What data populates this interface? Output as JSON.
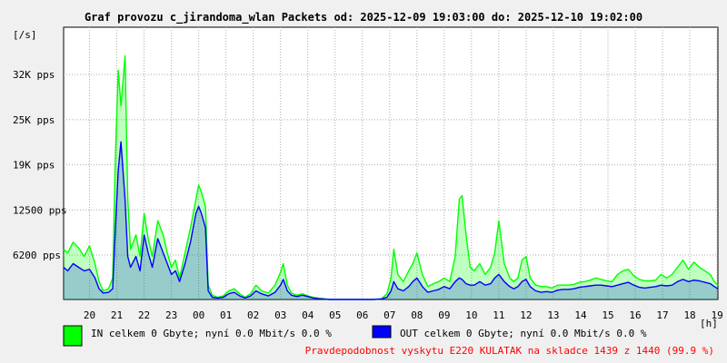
{
  "chart_data": {
    "type": "line",
    "title": "Graf provozu c_jirandoma_wlan Packets od: 2025-12-09 19:03:00 do: 2025-12-10 19:02:00",
    "ylabel": "[/s]",
    "xlabel": "[h]",
    "ylim": [
      0,
      38000
    ],
    "y_ticks": [
      {
        "label": "6200 pps",
        "value": 6200
      },
      {
        "label": "12500 pps",
        "value": 12500
      },
      {
        "label": "19K pps",
        "value": 18800
      },
      {
        "label": "25K pps",
        "value": 25100
      },
      {
        "label": "32K pps",
        "value": 31400
      }
    ],
    "x_ticks": [
      "20",
      "21",
      "22",
      "23",
      "00",
      "01",
      "02",
      "03",
      "04",
      "05",
      "06",
      "07",
      "08",
      "09",
      "10",
      "11",
      "12",
      "13",
      "14",
      "15",
      "16",
      "17",
      "18",
      "19"
    ],
    "x_range_hours": [
      19.05,
      43.03
    ],
    "grid": true,
    "series": [
      {
        "color": "#00ff00",
        "points": [
          [
            19.05,
            7000
          ],
          [
            19.2,
            6500
          ],
          [
            19.4,
            8000
          ],
          [
            19.6,
            7200
          ],
          [
            19.8,
            6000
          ],
          [
            20.0,
            7500
          ],
          [
            20.2,
            5000
          ],
          [
            20.35,
            2500
          ],
          [
            20.5,
            1200
          ],
          [
            20.7,
            1500
          ],
          [
            20.85,
            3000
          ],
          [
            20.95,
            20000
          ],
          [
            21.05,
            32000
          ],
          [
            21.15,
            27000
          ],
          [
            21.3,
            34000
          ],
          [
            21.4,
            14000
          ],
          [
            21.5,
            7000
          ],
          [
            21.7,
            9000
          ],
          [
            21.85,
            6000
          ],
          [
            22.0,
            12000
          ],
          [
            22.15,
            8500
          ],
          [
            22.3,
            6000
          ],
          [
            22.5,
            11000
          ],
          [
            22.7,
            9000
          ],
          [
            22.85,
            6500
          ],
          [
            23.0,
            4500
          ],
          [
            23.15,
            5500
          ],
          [
            23.3,
            3000
          ],
          [
            23.5,
            6500
          ],
          [
            23.7,
            10000
          ],
          [
            23.9,
            14000
          ],
          [
            24.0,
            16000
          ],
          [
            24.1,
            15000
          ],
          [
            24.25,
            13000
          ],
          [
            24.35,
            2000
          ],
          [
            24.5,
            600
          ],
          [
            24.7,
            300
          ],
          [
            24.9,
            500
          ],
          [
            25.1,
            1200
          ],
          [
            25.3,
            1500
          ],
          [
            25.5,
            800
          ],
          [
            25.7,
            300
          ],
          [
            25.9,
            800
          ],
          [
            26.1,
            2000
          ],
          [
            26.3,
            1200
          ],
          [
            26.55,
            900
          ],
          [
            26.8,
            2000
          ],
          [
            27.0,
            3800
          ],
          [
            27.1,
            5000
          ],
          [
            27.25,
            2000
          ],
          [
            27.4,
            900
          ],
          [
            27.6,
            600
          ],
          [
            27.8,
            800
          ],
          [
            28.0,
            500
          ],
          [
            28.2,
            300
          ],
          [
            28.4,
            200
          ],
          [
            28.6,
            100
          ],
          [
            28.8,
            0
          ],
          [
            29.2,
            0
          ],
          [
            29.6,
            0
          ],
          [
            30.0,
            0
          ],
          [
            30.4,
            0
          ],
          [
            30.7,
            100
          ],
          [
            30.9,
            800
          ],
          [
            31.05,
            3000
          ],
          [
            31.15,
            7000
          ],
          [
            31.3,
            3500
          ],
          [
            31.5,
            2500
          ],
          [
            31.7,
            4000
          ],
          [
            31.85,
            5000
          ],
          [
            32.0,
            6500
          ],
          [
            32.2,
            3500
          ],
          [
            32.4,
            1800
          ],
          [
            32.6,
            2200
          ],
          [
            32.8,
            2500
          ],
          [
            33.0,
            3000
          ],
          [
            33.2,
            2500
          ],
          [
            33.4,
            6000
          ],
          [
            33.55,
            14000
          ],
          [
            33.65,
            14500
          ],
          [
            33.8,
            9000
          ],
          [
            33.95,
            4500
          ],
          [
            34.1,
            4000
          ],
          [
            34.3,
            5000
          ],
          [
            34.5,
            3500
          ],
          [
            34.7,
            4500
          ],
          [
            34.85,
            6500
          ],
          [
            35.0,
            11000
          ],
          [
            35.2,
            5000
          ],
          [
            35.4,
            3000
          ],
          [
            35.55,
            2500
          ],
          [
            35.7,
            3000
          ],
          [
            35.85,
            5500
          ],
          [
            36.0,
            6000
          ],
          [
            36.15,
            3000
          ],
          [
            36.35,
            2000
          ],
          [
            36.55,
            1800
          ],
          [
            36.75,
            1800
          ],
          [
            36.95,
            1600
          ],
          [
            37.15,
            2000
          ],
          [
            37.35,
            2000
          ],
          [
            37.55,
            2000
          ],
          [
            37.75,
            2100
          ],
          [
            37.95,
            2400
          ],
          [
            38.15,
            2500
          ],
          [
            38.35,
            2700
          ],
          [
            38.55,
            3000
          ],
          [
            38.75,
            2800
          ],
          [
            38.95,
            2600
          ],
          [
            39.15,
            2500
          ],
          [
            39.35,
            3500
          ],
          [
            39.55,
            4000
          ],
          [
            39.75,
            4200
          ],
          [
            39.95,
            3300
          ],
          [
            40.15,
            2800
          ],
          [
            40.35,
            2600
          ],
          [
            40.55,
            2600
          ],
          [
            40.75,
            2700
          ],
          [
            40.95,
            3500
          ],
          [
            41.15,
            3000
          ],
          [
            41.35,
            3500
          ],
          [
            41.55,
            4500
          ],
          [
            41.75,
            5500
          ],
          [
            41.95,
            4200
          ],
          [
            42.15,
            5200
          ],
          [
            42.35,
            4500
          ],
          [
            42.55,
            4000
          ],
          [
            42.75,
            3500
          ],
          [
            42.9,
            2500
          ],
          [
            43.03,
            2000
          ]
        ]
      },
      {
        "color": "#0000ff",
        "points": [
          [
            19.05,
            4500
          ],
          [
            19.2,
            4000
          ],
          [
            19.4,
            5000
          ],
          [
            19.6,
            4500
          ],
          [
            19.8,
            4000
          ],
          [
            20.0,
            4200
          ],
          [
            20.2,
            3000
          ],
          [
            20.35,
            1500
          ],
          [
            20.5,
            900
          ],
          [
            20.7,
            1000
          ],
          [
            20.85,
            1500
          ],
          [
            20.95,
            10000
          ],
          [
            21.05,
            18000
          ],
          [
            21.15,
            22000
          ],
          [
            21.3,
            14000
          ],
          [
            21.4,
            6000
          ],
          [
            21.5,
            4500
          ],
          [
            21.7,
            6000
          ],
          [
            21.85,
            4000
          ],
          [
            22.0,
            9000
          ],
          [
            22.15,
            6500
          ],
          [
            22.3,
            4500
          ],
          [
            22.5,
            8500
          ],
          [
            22.7,
            6500
          ],
          [
            22.85,
            5000
          ],
          [
            23.0,
            3500
          ],
          [
            23.15,
            4000
          ],
          [
            23.3,
            2500
          ],
          [
            23.5,
            5000
          ],
          [
            23.7,
            8000
          ],
          [
            23.9,
            12000
          ],
          [
            24.0,
            13000
          ],
          [
            24.1,
            12000
          ],
          [
            24.25,
            10000
          ],
          [
            24.35,
            1200
          ],
          [
            24.5,
            300
          ],
          [
            24.7,
            200
          ],
          [
            24.9,
            300
          ],
          [
            25.1,
            800
          ],
          [
            25.3,
            1000
          ],
          [
            25.5,
            500
          ],
          [
            25.7,
            200
          ],
          [
            25.9,
            500
          ],
          [
            26.1,
            1200
          ],
          [
            26.3,
            800
          ],
          [
            26.55,
            500
          ],
          [
            26.8,
            1000
          ],
          [
            27.0,
            2000
          ],
          [
            27.1,
            2800
          ],
          [
            27.25,
            1200
          ],
          [
            27.4,
            600
          ],
          [
            27.6,
            400
          ],
          [
            27.8,
            600
          ],
          [
            28.0,
            400
          ],
          [
            28.2,
            200
          ],
          [
            28.4,
            100
          ],
          [
            28.6,
            50
          ],
          [
            28.8,
            0
          ],
          [
            29.2,
            0
          ],
          [
            29.6,
            0
          ],
          [
            30.0,
            0
          ],
          [
            30.4,
            0
          ],
          [
            30.7,
            80
          ],
          [
            30.9,
            300
          ],
          [
            31.05,
            1200
          ],
          [
            31.15,
            2500
          ],
          [
            31.3,
            1500
          ],
          [
            31.5,
            1200
          ],
          [
            31.7,
            1800
          ],
          [
            31.85,
            2500
          ],
          [
            32.0,
            3000
          ],
          [
            32.2,
            1800
          ],
          [
            32.4,
            1000
          ],
          [
            32.6,
            1200
          ],
          [
            32.8,
            1400
          ],
          [
            33.0,
            1800
          ],
          [
            33.2,
            1500
          ],
          [
            33.4,
            2500
          ],
          [
            33.55,
            3000
          ],
          [
            33.65,
            2800
          ],
          [
            33.8,
            2200
          ],
          [
            33.95,
            2000
          ],
          [
            34.1,
            2000
          ],
          [
            34.3,
            2500
          ],
          [
            34.5,
            2000
          ],
          [
            34.7,
            2200
          ],
          [
            34.85,
            3000
          ],
          [
            35.0,
            3500
          ],
          [
            35.2,
            2500
          ],
          [
            35.4,
            1800
          ],
          [
            35.55,
            1500
          ],
          [
            35.7,
            1800
          ],
          [
            35.85,
            2500
          ],
          [
            36.0,
            2800
          ],
          [
            36.15,
            1800
          ],
          [
            36.35,
            1200
          ],
          [
            36.55,
            1000
          ],
          [
            36.75,
            1100
          ],
          [
            36.95,
            1000
          ],
          [
            37.15,
            1300
          ],
          [
            37.35,
            1400
          ],
          [
            37.55,
            1400
          ],
          [
            37.75,
            1500
          ],
          [
            37.95,
            1700
          ],
          [
            38.15,
            1800
          ],
          [
            38.35,
            1900
          ],
          [
            38.55,
            2000
          ],
          [
            38.75,
            2000
          ],
          [
            38.95,
            1900
          ],
          [
            39.15,
            1800
          ],
          [
            39.35,
            2000
          ],
          [
            39.55,
            2200
          ],
          [
            39.75,
            2400
          ],
          [
            39.95,
            2000
          ],
          [
            40.15,
            1700
          ],
          [
            40.35,
            1600
          ],
          [
            40.55,
            1700
          ],
          [
            40.75,
            1800
          ],
          [
            40.95,
            2000
          ],
          [
            41.15,
            1900
          ],
          [
            41.35,
            2000
          ],
          [
            41.55,
            2500
          ],
          [
            41.75,
            2800
          ],
          [
            41.95,
            2500
          ],
          [
            42.15,
            2700
          ],
          [
            42.35,
            2600
          ],
          [
            42.55,
            2400
          ],
          [
            42.75,
            2200
          ],
          [
            42.9,
            1800
          ],
          [
            43.03,
            1500
          ]
        ]
      }
    ],
    "legend": [
      {
        "color": "#00ff00",
        "text": "IN celkem 0 Gbyte; nyní   0.0 Mbit/s 0.0 %"
      },
      {
        "color": "#0000ff",
        "text": "OUT celkem 0 Gbyte; nyní   0.0 Mbit/s 0.0 %"
      }
    ],
    "footer": "Pravdepodobnost vyskytu E220 KULATAK na skladce 1439 z 1440 (99.9 %)",
    "footer_color": "#ff0000",
    "grid_color": "#aaaaaa",
    "plot_bg": "#ffffff"
  }
}
